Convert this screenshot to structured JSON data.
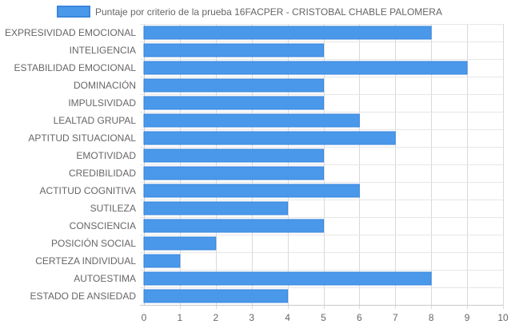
{
  "chart_data": {
    "type": "bar",
    "orientation": "horizontal",
    "categories": [
      "EXPRESIVIDAD EMOCIONAL",
      "INTELIGENCIA",
      "ESTABILIDAD EMOCIONAL",
      "DOMINACIÓN",
      "IMPULSIVIDAD",
      "LEALTAD GRUPAL",
      "APTITUD SITUACIONAL",
      "EMOTIVIDAD",
      "CREDIBILIDAD",
      "ACTITUD COGNITIVA",
      "SUTILEZA",
      "CONSCIENCIA",
      "POSICIÓN SOCIAL",
      "CERTEZA INDIVIDUAL",
      "AUTOESTIMA",
      "ESTADO DE ANSIEDAD"
    ],
    "series": [
      {
        "name": "Puntaje por criterio de la prueba 16FACPER - CRISTOBAL CHABLE PALOMERA",
        "values": [
          8,
          5,
          9,
          5,
          5,
          6,
          7,
          5,
          5,
          6,
          4,
          5,
          2,
          1,
          8,
          4
        ],
        "color": "#4a98ea",
        "border_color": "#3a86dc"
      }
    ],
    "xlim": [
      0,
      10
    ],
    "x_ticks": [
      "0",
      "1",
      "2",
      "3",
      "4",
      "5",
      "6",
      "7",
      "8",
      "9",
      "10"
    ],
    "grid": true,
    "legend_position": "top-center",
    "title": "",
    "xlabel": "",
    "ylabel": ""
  }
}
